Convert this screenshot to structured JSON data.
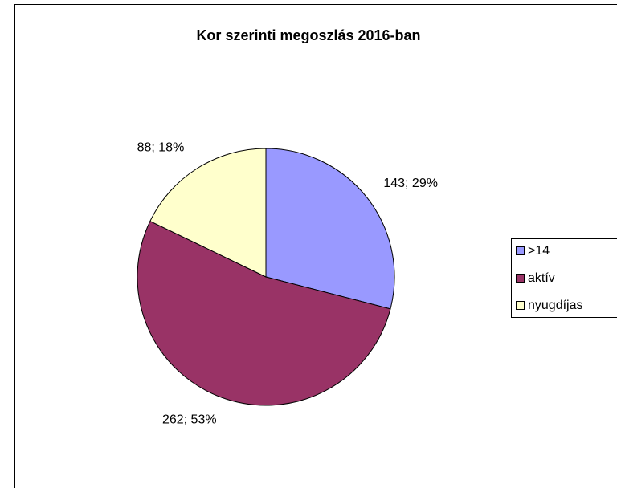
{
  "chart_data": {
    "type": "pie",
    "title": "Kor szerinti megoszlás 2016-ban",
    "categories": [
      ">14",
      "aktív",
      "nyugdíjas"
    ],
    "values": [
      143,
      262,
      88
    ],
    "value_labels": [
      "143; 29%",
      "262; 53%",
      "88; 18%"
    ],
    "colors": [
      "#9999ff",
      "#993366",
      "#ffffcc"
    ],
    "legend": "right"
  }
}
